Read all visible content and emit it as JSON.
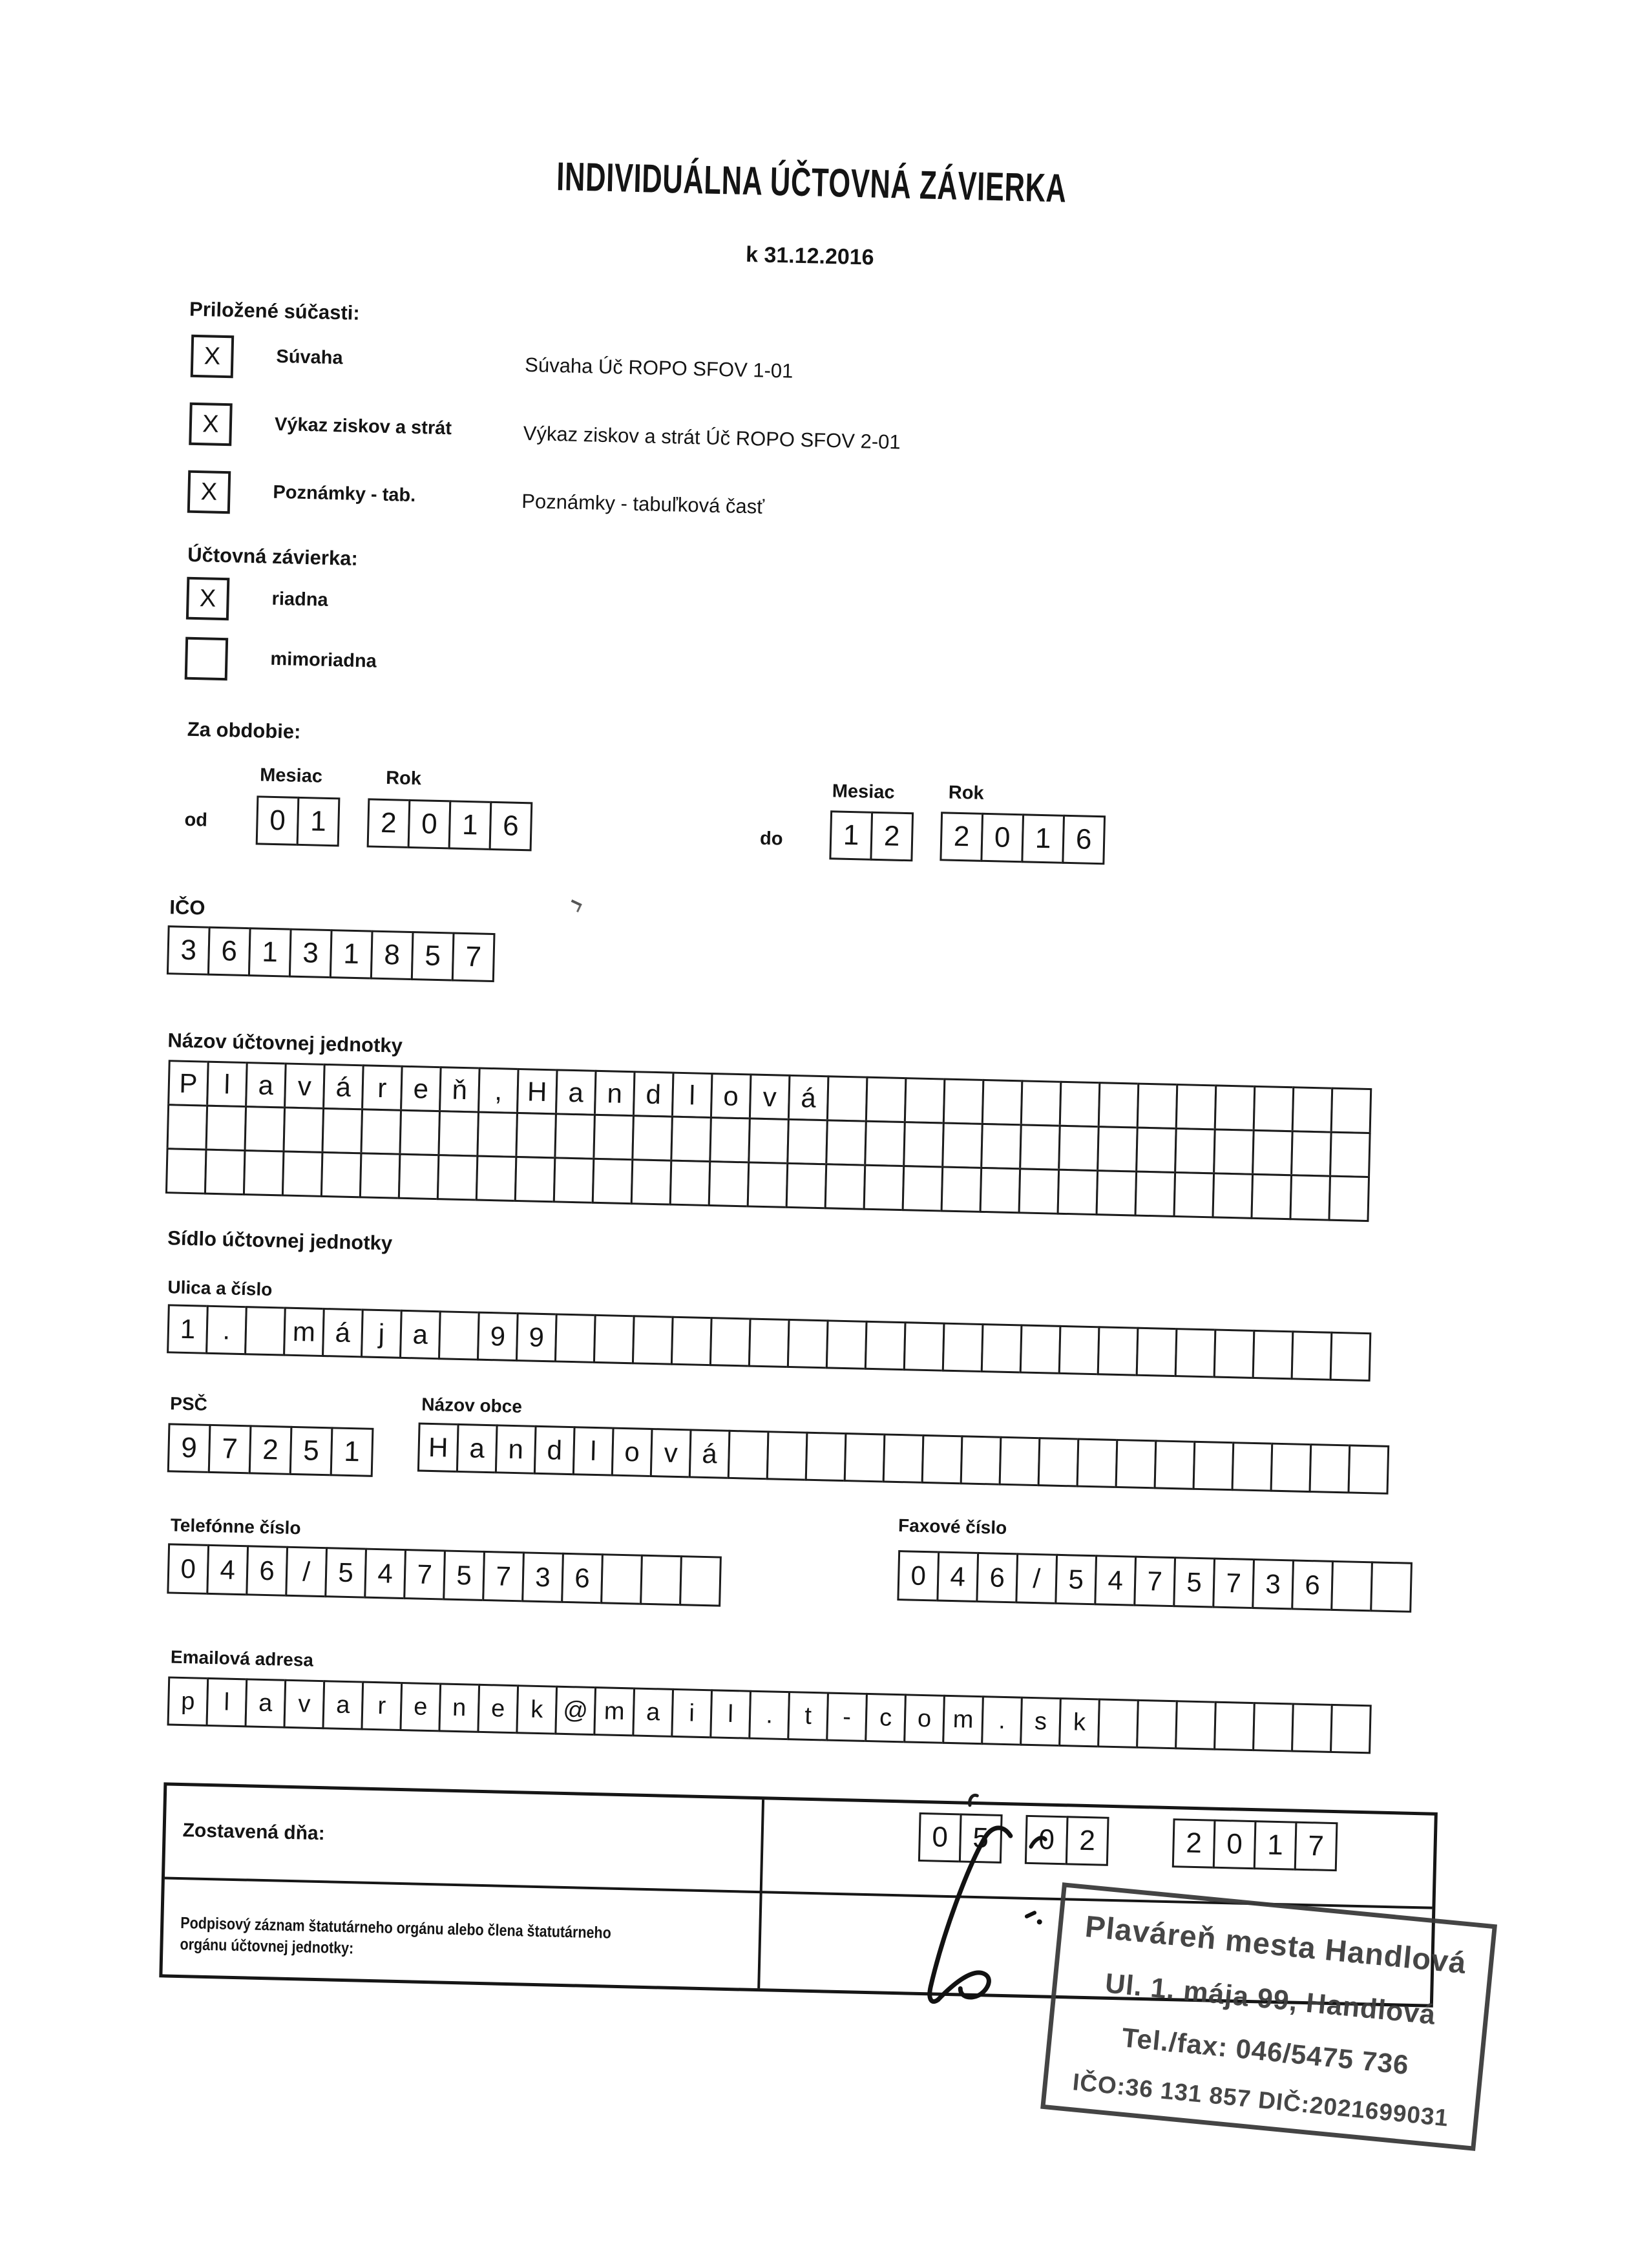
{
  "form": {
    "title": "INDIVIDUÁLNA ÚČTOVNÁ ZÁVIERKA",
    "date_line": "k 31.12.2016"
  },
  "attachments": {
    "heading": "Priložené súčasti:",
    "items": [
      {
        "mark": "X",
        "label": "Súvaha",
        "form_code": "Súvaha Úč ROPO SFOV 1-01"
      },
      {
        "mark": "X",
        "label": "Výkaz ziskov a strát",
        "form_code": "Výkaz ziskov a strát Úč ROPO SFOV 2-01"
      },
      {
        "mark": "X",
        "label": "Poznámky - tab.",
        "form_code": "Poznámky - tabuľková časť"
      }
    ]
  },
  "closing": {
    "heading": "Účtovná závierka:",
    "options": [
      {
        "mark": "X",
        "label": "riadna"
      },
      {
        "mark": "",
        "label": "mimoriadna"
      }
    ]
  },
  "period": {
    "heading": "Za obdobie:",
    "month_label": "Mesiac",
    "year_label": "Rok",
    "from": {
      "label": "od",
      "month": [
        "0",
        "1"
      ],
      "year": [
        "2",
        "0",
        "1",
        "6"
      ]
    },
    "to": {
      "label": "do",
      "month": [
        "1",
        "2"
      ],
      "year": [
        "2",
        "0",
        "1",
        "6"
      ]
    }
  },
  "ico": {
    "label": "IČO",
    "digits": [
      "3",
      "6",
      "1",
      "3",
      "1",
      "8",
      "5",
      "7"
    ]
  },
  "entity": {
    "label": "Názov účtovnej jednotky",
    "rows": [
      [
        "P",
        "l",
        "a",
        "v",
        "á",
        "r",
        "e",
        "ň",
        ",",
        "H",
        "a",
        "n",
        "d",
        "l",
        "o",
        "v",
        "á"
      ],
      [],
      []
    ]
  },
  "address": {
    "heading": "Sídlo účtovnej jednotky",
    "street_label": "Ulica a číslo",
    "street": [
      "1",
      ".",
      "",
      "m",
      "á",
      "j",
      "a",
      "",
      "9",
      "9"
    ],
    "zip_label": "PSČ",
    "zip": [
      "9",
      "7",
      "2",
      "5",
      "1"
    ],
    "city_label": "Názov obce",
    "city": [
      "H",
      "a",
      "n",
      "d",
      "l",
      "o",
      "v",
      "á"
    ],
    "phone_label": "Telefónne číslo",
    "phone": [
      "0",
      "4",
      "6",
      "/",
      "5",
      "4",
      "7",
      "5",
      "7",
      "3",
      "6"
    ],
    "fax_label": "Faxové číslo",
    "fax": [
      "0",
      "4",
      "6",
      "/",
      "5",
      "4",
      "7",
      "5",
      "7",
      "3",
      "6"
    ],
    "email_label": "Emailová adresa",
    "email": [
      "p",
      "l",
      "a",
      "v",
      "a",
      "r",
      "e",
      "n",
      "e",
      "k",
      "@",
      "m",
      "a",
      "i",
      "l",
      ".",
      "t",
      "-",
      "c",
      "o",
      "m",
      ".",
      "s",
      "k"
    ]
  },
  "footer": {
    "compiled_label": "Zostavená dňa:",
    "compiled_day": [
      "0",
      "5"
    ],
    "compiled_month": [
      "0",
      "2"
    ],
    "compiled_year": [
      "2",
      "0",
      "1",
      "7"
    ],
    "signature_label": "Podpisový záznam štatutárneho orgánu alebo člena štatutárneho orgánu účtovnej jednotky:"
  },
  "stamp": {
    "lines": [
      "Plaváreň mesta Handlová",
      "Ul. 1. mája 99, Handlová",
      "Tel./fax: 046/5475 736",
      "IČO:36 131 857 DIČ:2021699031"
    ]
  }
}
